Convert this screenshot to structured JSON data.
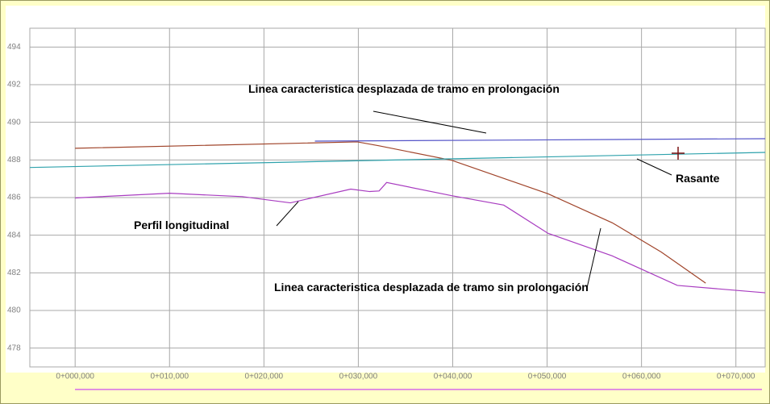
{
  "chart_data": {
    "type": "line",
    "xlim": [
      -4.8,
      73.1
    ],
    "ylim": [
      477,
      495
    ],
    "xticks": [
      {
        "value": 0,
        "label": "0+000,000"
      },
      {
        "value": 10,
        "label": "0+010,000"
      },
      {
        "value": 20,
        "label": "0+020,000"
      },
      {
        "value": 30,
        "label": "0+030,000"
      },
      {
        "value": 40,
        "label": "0+040,000"
      },
      {
        "value": 50,
        "label": "0+050,000"
      },
      {
        "value": 60,
        "label": "0+060,000"
      },
      {
        "value": 70,
        "label": "0+070,000"
      }
    ],
    "yticks": [
      478,
      480,
      482,
      484,
      486,
      488,
      490,
      492,
      494
    ],
    "grid": true,
    "series": [
      {
        "name": "Perfil longitudinal",
        "color": "#a83cc0",
        "x": [
          0,
          10,
          17.7,
          22.8,
          29.2,
          31.2,
          32.2,
          33,
          39.9,
          45.4,
          50.1,
          51.8,
          56.9,
          63.8,
          73.1
        ],
        "values": [
          485.98,
          486.23,
          486.05,
          485.72,
          486.45,
          486.32,
          486.35,
          486.8,
          486.1,
          485.6,
          484.1,
          483.8,
          482.9,
          481.33,
          480.94
        ]
      },
      {
        "name": "Linea caracteristica desplazada de tramo sin prolongación",
        "color": "#a0442a",
        "x": [
          0,
          29.9,
          32.2,
          39.9,
          50.1,
          56.9,
          62.1,
          66.8
        ],
        "values": [
          488.62,
          488.96,
          488.75,
          487.98,
          486.2,
          484.66,
          483.1,
          481.45
        ]
      },
      {
        "name": "Linea caracteristica desplazada de tramo en prolongación",
        "color": "#5454c8",
        "x": [
          25.4,
          73.1
        ],
        "values": [
          489.0,
          489.13
        ]
      },
      {
        "name": "Rasante",
        "color": "#2ea2ac",
        "x": [
          -4.8,
          73.1
        ],
        "values": [
          487.6,
          488.4
        ]
      }
    ]
  }
}
